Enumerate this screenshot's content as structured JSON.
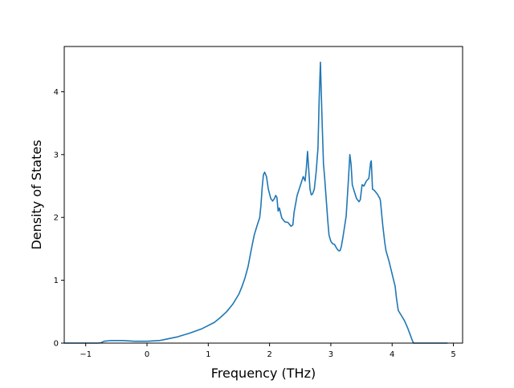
{
  "chart_data": {
    "type": "line",
    "title": "",
    "xlabel": "Frequency (THz)",
    "ylabel": "Density of States",
    "xlim": [
      -1.35,
      5.15
    ],
    "ylim": [
      0,
      4.72
    ],
    "grid": false,
    "legend": "none",
    "xticks": [
      {
        "value": -1,
        "label": "−1"
      },
      {
        "value": 0,
        "label": "0"
      },
      {
        "value": 1,
        "label": "1"
      },
      {
        "value": 2,
        "label": "2"
      },
      {
        "value": 3,
        "label": "3"
      },
      {
        "value": 4,
        "label": "4"
      },
      {
        "value": 5,
        "label": "5"
      }
    ],
    "yticks": [
      {
        "value": 0,
        "label": "0"
      },
      {
        "value": 1,
        "label": "1"
      },
      {
        "value": 2,
        "label": "2"
      },
      {
        "value": 3,
        "label": "3"
      },
      {
        "value": 4,
        "label": "4"
      }
    ],
    "series": [
      {
        "color": "#1f77b4",
        "x": [
          -1.35,
          -0.8,
          -0.75,
          -0.7,
          -0.6,
          -0.4,
          -0.2,
          0.0,
          0.2,
          0.3,
          0.5,
          0.7,
          0.9,
          1.1,
          1.2,
          1.3,
          1.4,
          1.5,
          1.55,
          1.6,
          1.65,
          1.7,
          1.75,
          1.8,
          1.84,
          1.86,
          1.88,
          1.9,
          1.92,
          1.95,
          1.98,
          2.02,
          2.05,
          2.08,
          2.1,
          2.12,
          2.14,
          2.16,
          2.2,
          2.25,
          2.3,
          2.35,
          2.38,
          2.4,
          2.45,
          2.5,
          2.55,
          2.58,
          2.6,
          2.62,
          2.64,
          2.66,
          2.68,
          2.7,
          2.73,
          2.76,
          2.79,
          2.81,
          2.83,
          2.845,
          2.86,
          2.88,
          2.9,
          2.95,
          2.97,
          3.0,
          3.03,
          3.06,
          3.1,
          3.13,
          3.15,
          3.17,
          3.2,
          3.25,
          3.29,
          3.31,
          3.33,
          3.35,
          3.38,
          3.42,
          3.46,
          3.48,
          3.51,
          3.54,
          3.58,
          3.62,
          3.65,
          3.66,
          3.68,
          3.71,
          3.76,
          3.8,
          3.81,
          3.83,
          3.85,
          3.88,
          3.9,
          3.95,
          4.0,
          4.05,
          4.07,
          4.1,
          4.15,
          4.2,
          4.25,
          4.3,
          4.33,
          4.35,
          4.38,
          4.5,
          4.7,
          4.9
        ],
        "y": [
          0,
          0,
          0.005,
          0.03,
          0.04,
          0.04,
          0.03,
          0.03,
          0.04,
          0.06,
          0.1,
          0.16,
          0.23,
          0.33,
          0.41,
          0.5,
          0.62,
          0.78,
          0.9,
          1.04,
          1.22,
          1.48,
          1.72,
          1.88,
          2.0,
          2.2,
          2.48,
          2.68,
          2.72,
          2.65,
          2.45,
          2.3,
          2.26,
          2.3,
          2.35,
          2.32,
          2.1,
          2.15,
          1.99,
          1.93,
          1.92,
          1.86,
          1.88,
          2.08,
          2.35,
          2.5,
          2.65,
          2.58,
          2.78,
          3.05,
          2.75,
          2.45,
          2.36,
          2.37,
          2.45,
          2.72,
          3.1,
          3.9,
          4.47,
          3.95,
          3.45,
          2.85,
          2.62,
          1.95,
          1.72,
          1.62,
          1.58,
          1.57,
          1.5,
          1.47,
          1.47,
          1.53,
          1.7,
          2.02,
          2.65,
          3.0,
          2.85,
          2.52,
          2.42,
          2.3,
          2.25,
          2.28,
          2.52,
          2.5,
          2.58,
          2.62,
          2.88,
          2.9,
          2.45,
          2.43,
          2.37,
          2.3,
          2.26,
          2.05,
          1.85,
          1.6,
          1.47,
          1.3,
          1.1,
          0.9,
          0.72,
          0.52,
          0.44,
          0.36,
          0.25,
          0.12,
          0.04,
          0.0,
          0.0,
          0.0,
          0.0,
          0.0
        ]
      }
    ]
  }
}
